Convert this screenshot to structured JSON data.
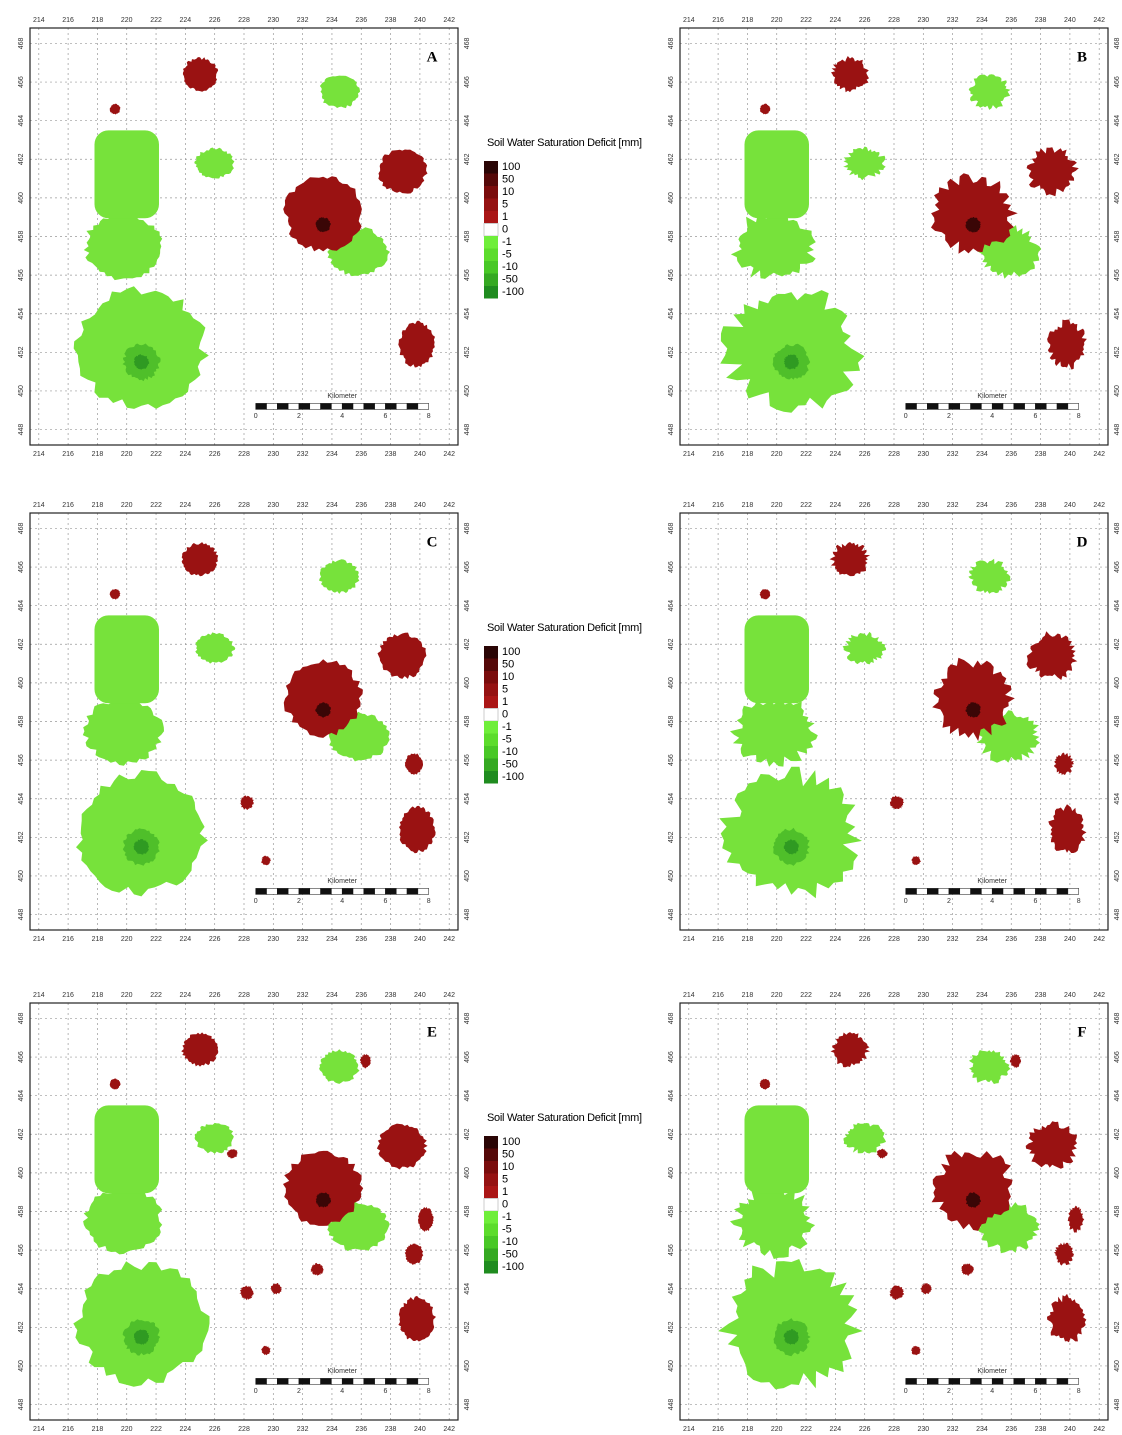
{
  "axes": {
    "x_ticks": [
      214,
      216,
      218,
      220,
      222,
      224,
      226,
      228,
      230,
      232,
      234,
      236,
      238,
      240,
      242
    ],
    "y_ticks": [
      448,
      450,
      452,
      454,
      456,
      458,
      460,
      462,
      464,
      466,
      468
    ]
  },
  "legend": {
    "title": "Soil Water Saturation Deficit [mm]",
    "values": [
      "100",
      "50",
      "10",
      "5",
      "1",
      "0",
      "-1",
      "-5",
      "-10",
      "-50",
      "-100"
    ]
  },
  "scale_bar": {
    "unit": "Kilometer",
    "labels": [
      0,
      2,
      4,
      6,
      8
    ]
  },
  "panels": [
    {
      "label": "A"
    },
    {
      "label": "B"
    },
    {
      "label": "C"
    },
    {
      "label": "D"
    },
    {
      "label": "E"
    },
    {
      "label": "F"
    }
  ]
}
